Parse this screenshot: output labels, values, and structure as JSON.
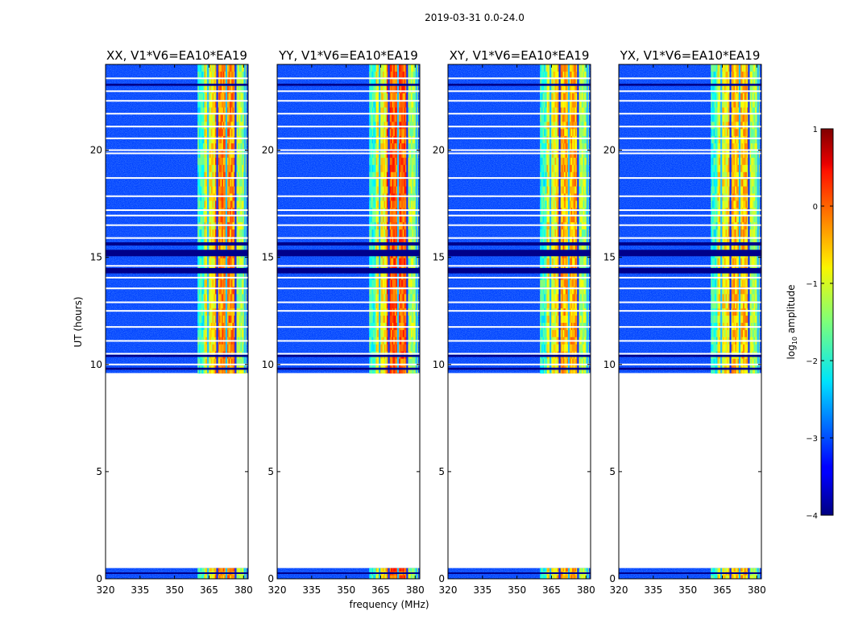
{
  "chart_data": {
    "type": "heatmap",
    "suptitle": "2019-03-31 0.0-24.0",
    "xlabel": "frequency (MHz)",
    "ylabel": "UT (hours)",
    "xlim": [
      320,
      382
    ],
    "ylim": [
      0,
      24
    ],
    "xticks": [
      "320",
      "335",
      "350",
      "365",
      "380"
    ],
    "yticks": [
      "0",
      "5",
      "10",
      "15",
      "20"
    ],
    "colorbar": {
      "label": "log10 amplitude",
      "label_main": "log",
      "label_sub": "10",
      "label_rest": " amplitude",
      "range": [
        -4,
        1
      ],
      "ticks": [
        "−4",
        "−3",
        "−2",
        "−1",
        "0",
        "1"
      ],
      "colormap": "jet"
    },
    "data_coverage_hours": [
      [
        0.0,
        0.5
      ],
      [
        9.6,
        24.0
      ]
    ],
    "panels": [
      {
        "title": "XX, V1*V6=EA10*EA19",
        "rfi_band_mhz": [
          360,
          381
        ],
        "peak_log10": 0.2
      },
      {
        "title": "YY, V1*V6=EA10*EA19",
        "rfi_band_mhz": [
          360,
          381
        ],
        "peak_log10": 0.4
      },
      {
        "title": "XY, V1*V6=EA10*EA19",
        "rfi_band_mhz": [
          360,
          381
        ],
        "peak_log10": 0.0
      },
      {
        "title": "YX, V1*V6=EA10*EA19",
        "rfi_band_mhz": [
          360,
          381
        ],
        "peak_log10": -0.1
      }
    ]
  }
}
